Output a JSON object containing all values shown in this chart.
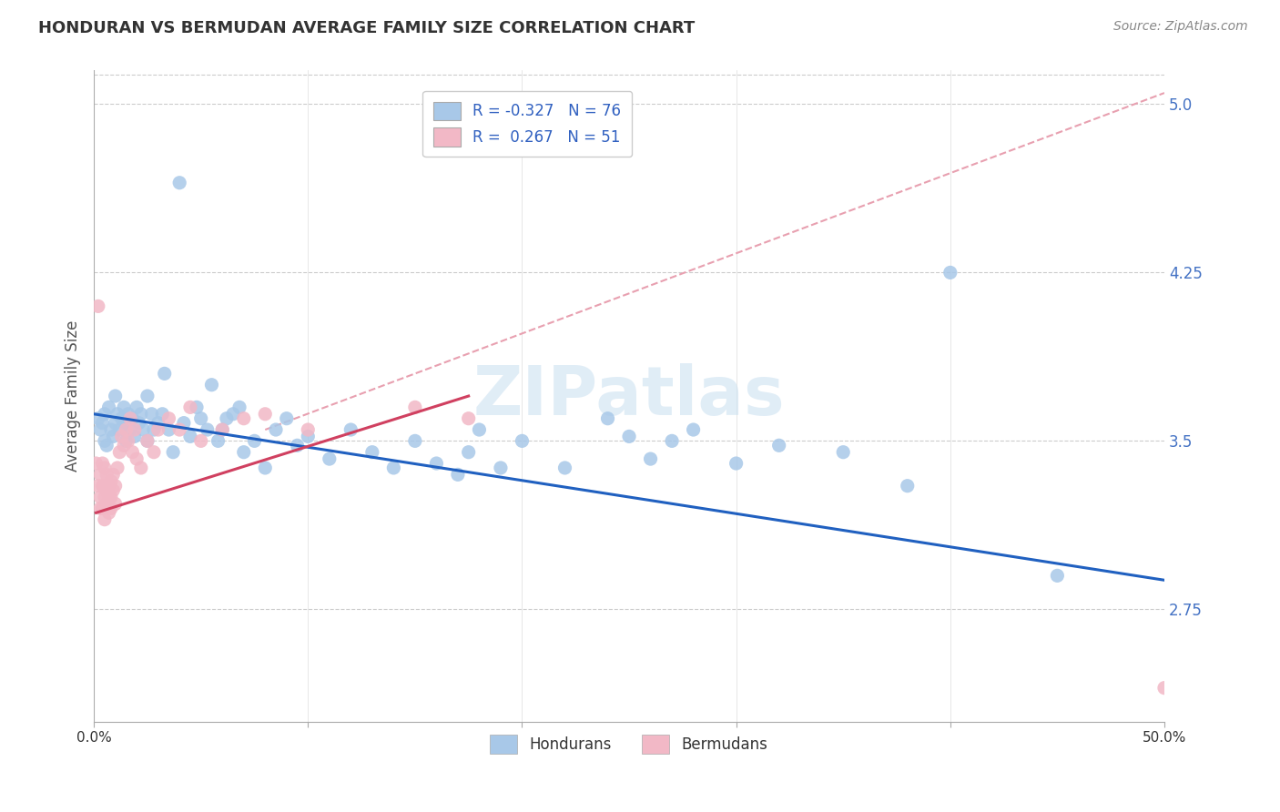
{
  "title": "HONDURAN VS BERMUDAN AVERAGE FAMILY SIZE CORRELATION CHART",
  "source": "Source: ZipAtlas.com",
  "ylabel": "Average Family Size",
  "xlim": [
    0.0,
    0.5
  ],
  "ylim": [
    2.25,
    5.15
  ],
  "xticks": [
    0.0,
    0.1,
    0.2,
    0.3,
    0.4,
    0.5
  ],
  "xticklabels": [
    "0.0%",
    "",
    "",
    "",
    "",
    "50.0%"
  ],
  "yticks_right": [
    2.75,
    3.5,
    4.25,
    5.0
  ],
  "honduran_color": "#a8c8e8",
  "bermudan_color": "#f2b8c6",
  "honduran_line_color": "#2060c0",
  "bermudan_line_color": "#d04060",
  "dashed_line_color": "#e8a0b0",
  "watermark": "ZIPatlas",
  "background_color": "#ffffff",
  "honduran_R": -0.327,
  "honduran_N": 76,
  "bermudan_R": 0.267,
  "bermudan_N": 51,
  "honduran_points_x": [
    0.002,
    0.003,
    0.004,
    0.005,
    0.005,
    0.006,
    0.007,
    0.008,
    0.009,
    0.01,
    0.01,
    0.011,
    0.012,
    0.013,
    0.014,
    0.015,
    0.015,
    0.016,
    0.017,
    0.018,
    0.019,
    0.02,
    0.021,
    0.022,
    0.023,
    0.025,
    0.025,
    0.027,
    0.028,
    0.03,
    0.032,
    0.033,
    0.035,
    0.037,
    0.04,
    0.042,
    0.045,
    0.048,
    0.05,
    0.053,
    0.055,
    0.058,
    0.06,
    0.062,
    0.065,
    0.068,
    0.07,
    0.075,
    0.08,
    0.085,
    0.09,
    0.095,
    0.1,
    0.11,
    0.12,
    0.13,
    0.14,
    0.15,
    0.16,
    0.17,
    0.18,
    0.2,
    0.22,
    0.24,
    0.26,
    0.28,
    0.3,
    0.32,
    0.35,
    0.38,
    0.175,
    0.19,
    0.25,
    0.27,
    0.4,
    0.45
  ],
  "honduran_points_y": [
    3.6,
    3.55,
    3.58,
    3.62,
    3.5,
    3.48,
    3.65,
    3.55,
    3.52,
    3.58,
    3.7,
    3.62,
    3.55,
    3.6,
    3.65,
    3.58,
    3.5,
    3.62,
    3.55,
    3.6,
    3.52,
    3.65,
    3.58,
    3.62,
    3.55,
    3.7,
    3.5,
    3.62,
    3.55,
    3.58,
    3.62,
    3.8,
    3.55,
    3.45,
    4.65,
    3.58,
    3.52,
    3.65,
    3.6,
    3.55,
    3.75,
    3.5,
    3.55,
    3.6,
    3.62,
    3.65,
    3.45,
    3.5,
    3.38,
    3.55,
    3.6,
    3.48,
    3.52,
    3.42,
    3.55,
    3.45,
    3.38,
    3.5,
    3.4,
    3.35,
    3.55,
    3.5,
    3.38,
    3.6,
    3.42,
    3.55,
    3.4,
    3.48,
    3.45,
    3.3,
    3.45,
    3.38,
    3.52,
    3.5,
    4.25,
    2.9
  ],
  "bermudan_points_x": [
    0.001,
    0.002,
    0.002,
    0.003,
    0.003,
    0.003,
    0.004,
    0.004,
    0.004,
    0.005,
    0.005,
    0.005,
    0.005,
    0.006,
    0.006,
    0.006,
    0.007,
    0.007,
    0.007,
    0.008,
    0.008,
    0.008,
    0.009,
    0.009,
    0.01,
    0.01,
    0.011,
    0.012,
    0.013,
    0.014,
    0.015,
    0.016,
    0.017,
    0.018,
    0.019,
    0.02,
    0.022,
    0.025,
    0.028,
    0.03,
    0.035,
    0.04,
    0.045,
    0.05,
    0.06,
    0.07,
    0.08,
    0.1,
    0.15,
    0.175,
    0.5
  ],
  "bermudan_points_y": [
    3.4,
    4.1,
    3.3,
    3.25,
    3.35,
    3.2,
    3.3,
    3.4,
    3.2,
    3.38,
    3.25,
    3.3,
    3.15,
    3.28,
    3.22,
    3.35,
    3.3,
    3.25,
    3.18,
    3.32,
    3.25,
    3.2,
    3.35,
    3.28,
    3.3,
    3.22,
    3.38,
    3.45,
    3.52,
    3.48,
    3.55,
    3.5,
    3.6,
    3.45,
    3.55,
    3.42,
    3.38,
    3.5,
    3.45,
    3.55,
    3.6,
    3.55,
    3.65,
    3.5,
    3.55,
    3.6,
    3.62,
    3.55,
    3.65,
    3.6,
    2.4
  ],
  "honduran_line_x0": 0.0,
  "honduran_line_y0": 3.62,
  "honduran_line_x1": 0.5,
  "honduran_line_y1": 2.88,
  "bermudan_line_x0": 0.001,
  "bermudan_line_y0": 3.18,
  "bermudan_line_x1": 0.175,
  "bermudan_line_y1": 3.7,
  "dashed_line_x0": 0.08,
  "dashed_line_y0": 3.55,
  "dashed_line_x1": 0.5,
  "dashed_line_y1": 5.05
}
